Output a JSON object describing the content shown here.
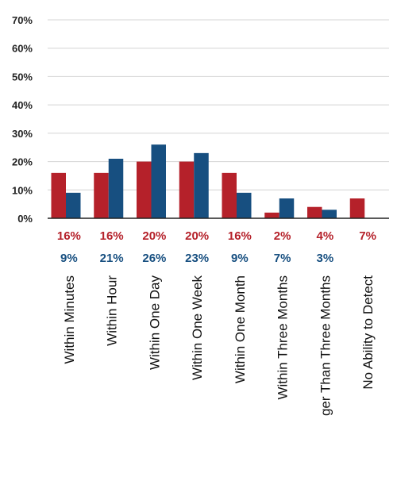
{
  "chart_data": {
    "type": "bar",
    "categories": [
      "Within Minutes",
      "Within Hour",
      "Within One Day",
      "Within One Week",
      "Within One Month",
      "Within Three Months",
      "ger Than Three Months",
      "No Ability to Detect"
    ],
    "series": [
      {
        "color": "#b5212a",
        "values": [
          16,
          16,
          20,
          20,
          16,
          2,
          4,
          7
        ],
        "labels": [
          "16%",
          "16%",
          "20%",
          "20%",
          "16%",
          "2%",
          "4%",
          "7%"
        ]
      },
      {
        "color": "#174f80",
        "values": [
          9,
          21,
          26,
          23,
          9,
          7,
          3,
          null
        ],
        "labels": [
          "9%",
          "21%",
          "26%",
          "23%",
          "9%",
          "7%",
          "3%",
          ""
        ]
      }
    ],
    "yticks": [
      "0%",
      "10%",
      "20%",
      "30%",
      "40%",
      "50%",
      "60%",
      "70%"
    ],
    "ylim": [
      0,
      70
    ],
    "grid": true
  }
}
